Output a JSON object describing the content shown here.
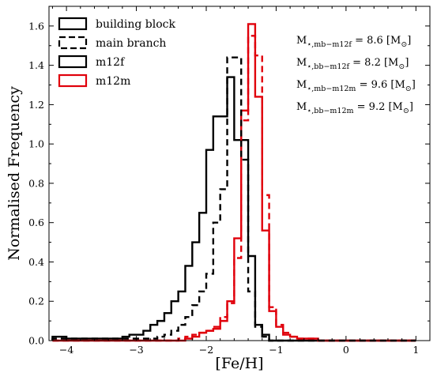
{
  "chart_data": {
    "type": "step-histogram",
    "xlabel": "[Fe/H]",
    "ylabel": "Normalised Frequency",
    "xlim": [
      -4.25,
      1.2
    ],
    "ylim": [
      0,
      1.7
    ],
    "xticks": [
      -4,
      -3,
      -2,
      -1,
      0,
      1
    ],
    "yticks": [
      0.0,
      0.2,
      0.4,
      0.6,
      0.8,
      1.0,
      1.2,
      1.4,
      1.6
    ],
    "xtick_labels": [
      "−4",
      "−3",
      "−2",
      "−1",
      "0",
      "1"
    ],
    "ytick_labels": [
      "0.0",
      "0.2",
      "0.4",
      "0.6",
      "0.8",
      "1.0",
      "1.2",
      "1.4",
      "1.6"
    ],
    "grid": false,
    "legend_placement": "top-left",
    "bin_edges": [
      -4.2,
      -4.0,
      -3.9,
      -3.8,
      -3.7,
      -3.6,
      -3.5,
      -3.4,
      -3.3,
      -3.2,
      -3.1,
      -3.0,
      -2.9,
      -2.8,
      -2.7,
      -2.6,
      -2.5,
      -2.4,
      -2.3,
      -2.2,
      -2.1,
      -2.0,
      -1.9,
      -1.8,
      -1.7,
      -1.6,
      -1.5,
      -1.4,
      -1.3,
      -1.2,
      -1.1,
      -1.0,
      -0.9,
      -0.8,
      -0.7,
      -0.6,
      -0.5,
      -0.4,
      -0.3,
      -0.2,
      -0.1,
      0.0,
      0.1,
      0.2,
      0.3,
      0.4,
      0.5,
      0.6,
      0.7,
      0.8,
      0.9,
      1.0
    ],
    "series": [
      {
        "name": "building block",
        "simulation": "m12f",
        "color": "#000000",
        "style": "solid",
        "values": [
          0.02,
          0.01,
          0.01,
          0.01,
          0.01,
          0.01,
          0.01,
          0.01,
          0.01,
          0.02,
          0.03,
          0.03,
          0.05,
          0.08,
          0.1,
          0.14,
          0.2,
          0.25,
          0.38,
          0.5,
          0.65,
          0.97,
          1.14,
          1.14,
          1.34,
          1.02,
          1.02,
          0.43,
          0.08,
          0.03,
          0.0,
          0.0,
          0.0,
          0.0,
          0.0,
          0.0,
          0.0,
          0.0,
          0.0,
          0.0,
          0.0,
          0.0,
          0.0,
          0.0,
          0.0,
          0.0,
          0.0,
          0.0,
          0.0,
          0.0,
          0.0
        ]
      },
      {
        "name": "main branch",
        "simulation": "m12f",
        "color": "#000000",
        "style": "dashed",
        "values": [
          0.01,
          0.01,
          0.01,
          0.01,
          0.01,
          0.01,
          0.01,
          0.01,
          0.01,
          0.01,
          0.01,
          0.01,
          0.01,
          0.01,
          0.02,
          0.03,
          0.05,
          0.08,
          0.12,
          0.18,
          0.25,
          0.34,
          0.6,
          0.77,
          1.44,
          1.44,
          0.92,
          0.25,
          0.07,
          0.02,
          0.0,
          0.0,
          0.0,
          0.0,
          0.0,
          0.0,
          0.0,
          0.0,
          0.0,
          0.0,
          0.0,
          0.0,
          0.0,
          0.0,
          0.0,
          0.0,
          0.0,
          0.0,
          0.0,
          0.0,
          0.0
        ]
      },
      {
        "name": "building block",
        "simulation": "m12m",
        "color": "#e0000b",
        "style": "solid",
        "values": [
          0.0,
          0.0,
          0.0,
          0.0,
          0.0,
          0.0,
          0.0,
          0.0,
          0.0,
          0.0,
          0.0,
          0.0,
          0.0,
          0.0,
          0.0,
          0.0,
          0.0,
          0.0,
          0.01,
          0.02,
          0.04,
          0.05,
          0.06,
          0.1,
          0.2,
          0.52,
          1.17,
          1.61,
          1.24,
          0.56,
          0.15,
          0.07,
          0.03,
          0.02,
          0.01,
          0.01,
          0.01,
          0.0,
          0.0,
          0.0,
          0.0,
          0.0,
          0.0,
          0.0,
          0.0,
          0.0,
          0.0,
          0.0,
          0.0,
          0.0,
          0.0
        ]
      },
      {
        "name": "main branch",
        "simulation": "m12m",
        "color": "#e0000b",
        "style": "dashed",
        "values": [
          0.0,
          0.0,
          0.0,
          0.0,
          0.0,
          0.0,
          0.0,
          0.0,
          0.0,
          0.0,
          0.0,
          0.0,
          0.0,
          0.0,
          0.0,
          0.0,
          0.0,
          0.01,
          0.02,
          0.03,
          0.04,
          0.05,
          0.07,
          0.12,
          0.19,
          0.42,
          1.12,
          1.55,
          1.45,
          0.74,
          0.17,
          0.08,
          0.04,
          0.02,
          0.01,
          0.01,
          0.01,
          0.0,
          0.0,
          0.0,
          0.0,
          0.0,
          0.0,
          0.0,
          0.0,
          0.0,
          0.0,
          0.0,
          0.0,
          0.0,
          0.0
        ]
      }
    ],
    "legend": [
      {
        "label": "building block",
        "color": "#000000",
        "style": "solid"
      },
      {
        "label": "main branch",
        "color": "#000000",
        "style": "dashed"
      },
      {
        "label": "m12f",
        "color": "#000000",
        "style": "solid"
      },
      {
        "label": "m12m",
        "color": "#e0000b",
        "style": "solid"
      }
    ],
    "annotations": [
      {
        "main": "M",
        "sub": "⋆,mb−m12f",
        "rest": " = 8.6 [M",
        "sun": "⊙",
        "close": "]"
      },
      {
        "main": "M",
        "sub": "⋆,bb−m12f",
        "rest": " = 8.2 [M",
        "sun": "⊙",
        "close": "]"
      },
      {
        "main": "M",
        "sub": "⋆,mb−m12m",
        "rest": " = 9.6 [M",
        "sun": "⊙",
        "close": "]"
      },
      {
        "main": "M",
        "sub": "⋆,bb−m12m",
        "rest": " = 9.2 [M",
        "sun": "⊙",
        "close": "]"
      }
    ]
  }
}
